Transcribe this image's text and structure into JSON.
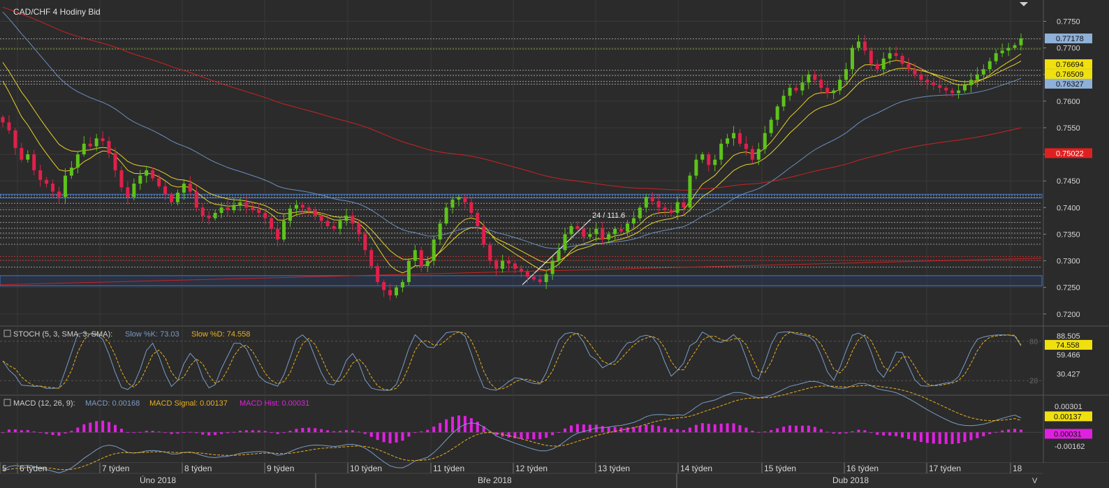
{
  "chart_title": "CAD/CHF  4 Hodiny Bid",
  "colors": {
    "background": "#2b2b2b",
    "grid": "#3a3a3a",
    "bull": "#5ec21b",
    "bear": "#e0204a",
    "ema_fast": "#e8d22a",
    "ema_slow": "#e8d22a",
    "sma_blue": "#6a8fc0",
    "sma_red": "#cc2222",
    "stoch_k": "#7a9cc8",
    "stoch_d": "#e8b020",
    "macd": "#7a9cc8",
    "macd_signal": "#e8b020",
    "macd_hist": "#e020e0"
  },
  "main_panel": {
    "y_axis_ticks": [
      "0.7750",
      "0.7700",
      "0.7650",
      "0.7600",
      "0.7550",
      "0.7500",
      "0.7450",
      "0.7400",
      "0.7350",
      "0.7300",
      "0.7250",
      "0.7200"
    ],
    "price_tags": [
      {
        "label": "0.77178",
        "value": 0.77178,
        "color": "#8fb0d8"
      },
      {
        "label": "0.76694",
        "value": 0.76694,
        "color": "#f0e010"
      },
      {
        "label": "0.76509",
        "value": 0.76509,
        "color": "#f0e010"
      },
      {
        "label": "0.76327",
        "value": 0.76327,
        "color": "#8fb0d8"
      },
      {
        "label": "0.75022",
        "value": 0.75022,
        "color": "#e02020"
      }
    ],
    "annotation": "24 / 111.6",
    "horizontal_levels": [
      0.7717,
      0.7698,
      0.7658,
      0.7648,
      0.7637,
      0.7632,
      0.7423,
      0.7419,
      0.7408,
      0.7396,
      0.7384,
      0.7372,
      0.7361,
      0.7352,
      0.7343,
      0.7331,
      0.7308,
      0.7301,
      0.7288
    ]
  },
  "stoch_panel": {
    "title": "STOCH (5, 3, SMA, 3, SMA):",
    "k_label": "Slow %K: 73.03",
    "d_label": "Slow %D: 74.558",
    "y_axis_ticks": [
      "88.505",
      "59.466",
      "30.427"
    ],
    "level_labels": [
      "80",
      "20"
    ],
    "tag": "74.558"
  },
  "macd_panel": {
    "title": "MACD (12, 26, 9):",
    "macd_label": "MACD: 0.00168",
    "signal_label": "MACD Signal: 0.00137",
    "hist_label": "MACD Hist: 0.00031",
    "y_axis_ticks": [
      "0.00301",
      "-0.00162"
    ],
    "tags": [
      "0.00137",
      "0.00031"
    ]
  },
  "time_axis": {
    "weeks": [
      "5",
      "6 týden",
      "7 týden",
      "8 týden",
      "9 týden",
      "10 týden",
      "11 týden",
      "12 týden",
      "13 týden",
      "14 týden",
      "15 týden",
      "16 týden",
      "17 týden",
      "18"
    ],
    "months": [
      "Úno 2018",
      "Bře 2018",
      "Dub 2018"
    ],
    "corner_label": "V"
  },
  "chart_data": {
    "type": "candlestick",
    "title": "CAD/CHF  4 Hodiny Bid",
    "ylim": [
      0.718,
      0.779
    ],
    "candles_close": [
      0.756,
      0.7545,
      0.7512,
      0.749,
      0.75,
      0.747,
      0.7452,
      0.7445,
      0.743,
      0.742,
      0.746,
      0.7475,
      0.75,
      0.752,
      0.7515,
      0.753,
      0.7525,
      0.7502,
      0.747,
      0.7438,
      0.742,
      0.7445,
      0.746,
      0.747,
      0.7455,
      0.744,
      0.7425,
      0.741,
      0.7428,
      0.7445,
      0.743,
      0.74,
      0.7385,
      0.738,
      0.739,
      0.74,
      0.7395,
      0.7405,
      0.741,
      0.74,
      0.7395,
      0.739,
      0.738,
      0.736,
      0.734,
      0.7375,
      0.7398,
      0.7405,
      0.74,
      0.7395,
      0.7385,
      0.7375,
      0.7365,
      0.736,
      0.7375,
      0.7385,
      0.737,
      0.735,
      0.732,
      0.729,
      0.726,
      0.7245,
      0.7235,
      0.725,
      0.726,
      0.73,
      0.732,
      0.729,
      0.73,
      0.734,
      0.737,
      0.74,
      0.7415,
      0.742,
      0.741,
      0.739,
      0.7365,
      0.733,
      0.73,
      0.7285,
      0.73,
      0.7295,
      0.7285,
      0.728,
      0.727,
      0.7265,
      0.726,
      0.7275,
      0.73,
      0.732,
      0.735,
      0.7365,
      0.736,
      0.7345,
      0.735,
      0.736,
      0.734,
      0.735,
      0.736,
      0.7355,
      0.737,
      0.738,
      0.74,
      0.742,
      0.7412,
      0.74,
      0.7395,
      0.739,
      0.741,
      0.74,
      0.746,
      0.749,
      0.75,
      0.748,
      0.749,
      0.752,
      0.753,
      0.754,
      0.752,
      0.751,
      0.749,
      0.751,
      0.754,
      0.7565,
      0.759,
      0.761,
      0.7625,
      0.762,
      0.7635,
      0.765,
      0.764,
      0.7625,
      0.7615,
      0.762,
      0.764,
      0.766,
      0.77,
      0.7712,
      0.7695,
      0.767,
      0.766,
      0.768,
      0.769,
      0.7685,
      0.767,
      0.766,
      0.765,
      0.764,
      0.7635,
      0.763,
      0.7625,
      0.762,
      0.7615,
      0.762,
      0.763,
      0.764,
      0.765,
      0.766,
      0.7675,
      0.769,
      0.7695,
      0.77,
      0.7705,
      0.7718
    ],
    "stoch_k_last": 73.03,
    "stoch_d_last": 74.558,
    "macd_last": 0.00168,
    "macd_signal_last": 0.00137,
    "macd_hist_last": 0.00031
  }
}
